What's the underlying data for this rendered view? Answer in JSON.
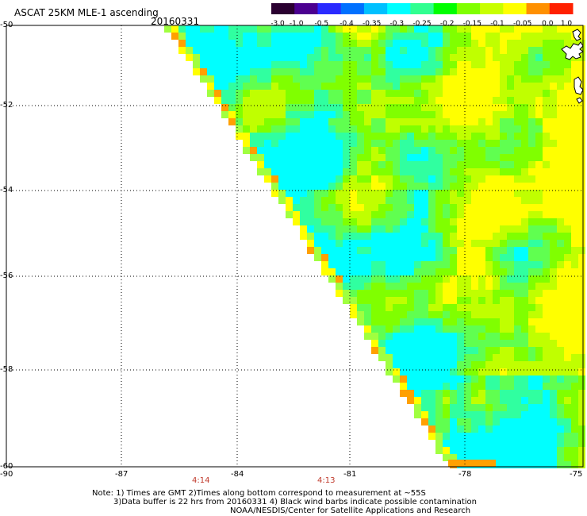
{
  "title": "ASCAT 25KM MLE-1 ascending",
  "date": "20160331",
  "colorbar": {
    "tick_labels": [
      "-3.0",
      "-1.0",
      "-0.5",
      "-0.4",
      "-0.35",
      "-0.3",
      "-0.25",
      "-0.2",
      "-0.15",
      "-0.1",
      "-0.05",
      "0.0",
      "1.0"
    ],
    "colors": [
      "#2a0030",
      "#4b0090",
      "#2a2aff",
      "#0070ff",
      "#00c0ff",
      "#00ffff",
      "#30ff90",
      "#00ff00",
      "#80ff00",
      "#c8ff00",
      "#ffff00",
      "#ff9000",
      "#ff2000"
    ]
  },
  "axes": {
    "lat_labels": [
      "-50",
      "-52",
      "-54",
      "-56",
      "-58",
      "-60"
    ],
    "lon_labels": [
      "-90",
      "-87",
      "-84",
      "-81",
      "-78",
      "-75"
    ]
  },
  "times": [
    "4:14",
    "4:13"
  ],
  "notes": [
    "Note: 1) Times are GMT 2)Times along bottom correspond to measurement at ~55S",
    "3)Data buffer is 22 hrs from 20160331 4) Black wind barbs indicate possible contamination",
    "NOAA/NESDIS/Center for Satellite Applications and Research"
  ]
}
